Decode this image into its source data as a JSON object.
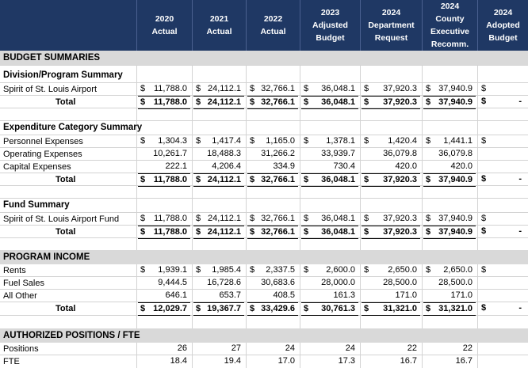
{
  "header": {
    "columns": [
      [
        "2020",
        "Actual"
      ],
      [
        "2021",
        "Actual"
      ],
      [
        "2022",
        "Actual"
      ],
      [
        "2023",
        "Adjusted",
        "Budget"
      ],
      [
        "2024",
        "Department",
        "Request"
      ],
      [
        "2024",
        "County",
        "Executive",
        "Recomm."
      ],
      [
        "2024",
        "Adopted",
        "Budget"
      ]
    ]
  },
  "sections": {
    "budget_summaries": "BUDGET SUMMARIES",
    "division_summary": "Division/Program Summary",
    "expenditure_summary": "Expenditure Category Summary",
    "fund_summary": "Fund Summary",
    "program_income": "PROGRAM INCOME",
    "positions": "AUTHORIZED POSITIONS / FTE"
  },
  "rows": [
    {
      "label": "Spirit of St. Louis Airport",
      "values": [
        "11,788.0",
        "24,112.1",
        "32,766.1",
        "36,048.1",
        "37,920.3",
        "37,940.9",
        ""
      ],
      "dollar": true
    },
    {
      "label": "Total",
      "values": [
        "11,788.0",
        "24,112.1",
        "32,766.1",
        "36,048.1",
        "37,920.3",
        "37,940.9",
        "-"
      ],
      "dollar": true,
      "total": true
    },
    {
      "label": "Personnel Expenses",
      "values": [
        "1,304.3",
        "1,417.4",
        "1,165.0",
        "1,378.1",
        "1,420.4",
        "1,441.1",
        ""
      ],
      "dollar": true
    },
    {
      "label": "Operating Expenses",
      "values": [
        "10,261.7",
        "18,488.3",
        "31,266.2",
        "33,939.7",
        "36,079.8",
        "36,079.8",
        ""
      ]
    },
    {
      "label": "Capital Expenses",
      "values": [
        "222.1",
        "4,206.4",
        "334.9",
        "730.4",
        "420.0",
        "420.0",
        ""
      ]
    },
    {
      "label": "Total",
      "values": [
        "11,788.0",
        "24,112.1",
        "32,766.1",
        "36,048.1",
        "37,920.3",
        "37,940.9",
        "-"
      ],
      "dollar": true,
      "total": true
    },
    {
      "label": "Spirit of St. Louis Airport Fund",
      "values": [
        "11,788.0",
        "24,112.1",
        "32,766.1",
        "36,048.1",
        "37,920.3",
        "37,940.9",
        ""
      ],
      "dollar": true
    },
    {
      "label": "Total",
      "values": [
        "11,788.0",
        "24,112.1",
        "32,766.1",
        "36,048.1",
        "37,920.3",
        "37,940.9",
        "-"
      ],
      "dollar": true,
      "total": true
    },
    {
      "label": "Rents",
      "values": [
        "1,939.1",
        "1,985.4",
        "2,337.5",
        "2,600.0",
        "2,650.0",
        "2,650.0",
        ""
      ],
      "dollar": true
    },
    {
      "label": "Fuel Sales",
      "values": [
        "9,444.5",
        "16,728.6",
        "30,683.6",
        "28,000.0",
        "28,500.0",
        "28,500.0",
        ""
      ]
    },
    {
      "label": "All Other",
      "values": [
        "646.1",
        "653.7",
        "408.5",
        "161.3",
        "171.0",
        "171.0",
        ""
      ]
    },
    {
      "label": "Total",
      "values": [
        "12,029.7",
        "19,367.7",
        "33,429.6",
        "30,761.3",
        "31,321.0",
        "31,321.0",
        "-"
      ],
      "dollar": true,
      "total": true
    },
    {
      "label": "Positions",
      "values": [
        "26",
        "27",
        "24",
        "24",
        "22",
        "22",
        ""
      ]
    },
    {
      "label": "FTE",
      "values": [
        "18.4",
        "19.4",
        "17.0",
        "17.3",
        "16.7",
        "16.7",
        ""
      ]
    }
  ],
  "currency_symbol": "$"
}
